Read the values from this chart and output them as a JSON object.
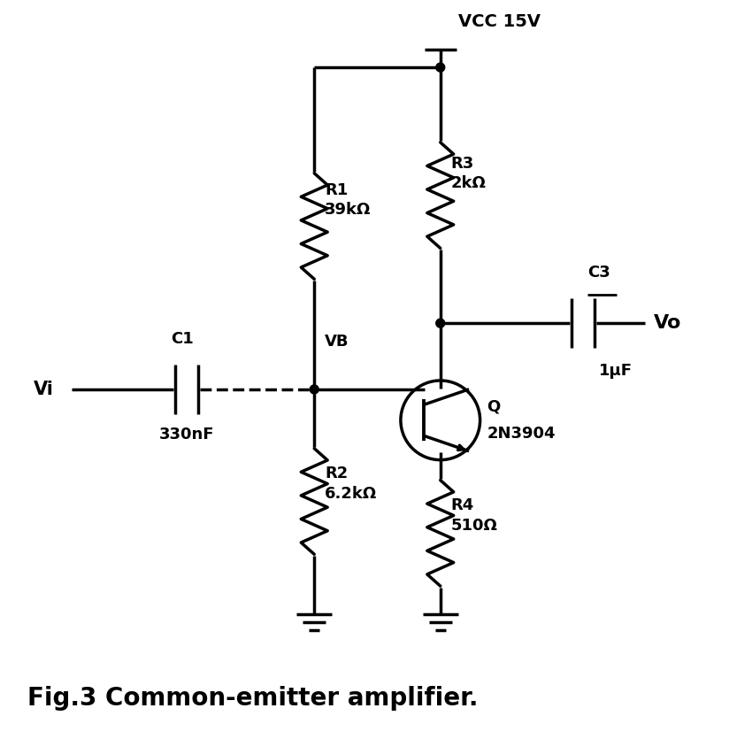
{
  "title": "Fig.3 Common-emitter amplifier.",
  "background_color": "#ffffff",
  "line_color": "#000000",
  "line_width": 2.5,
  "fig_width": 8.5,
  "fig_height": 8.35,
  "vcc_label": "VCC 15V",
  "vi_label": "Vi",
  "vo_label": "Vo",
  "vb_label": "VB",
  "q_label": "Q",
  "r1_label": "R1\n39kΩ",
  "r2_label": "R2\n6.2kΩ",
  "r3_label": "R3\n2kΩ",
  "r4_label": "R4\n510Ω",
  "c1_label": "330nF",
  "c3_label": "C3",
  "c3_val_label": "1μF",
  "q_name_label": "2N3904",
  "c1_top_label": "C1"
}
